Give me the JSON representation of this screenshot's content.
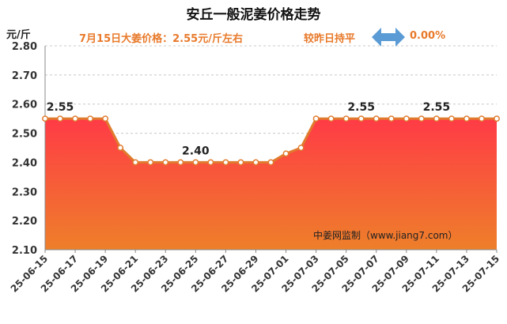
{
  "chart_data": {
    "type": "area",
    "title": "安丘一般泥姜价格走势",
    "ylabel": "元/斤",
    "subtitle_price": "7月15日大姜价格：2.55元/斤左右",
    "subtitle_change": "较昨日持平",
    "change_value": "0.00%",
    "watermark": "中姜网监制（www.jiang7.com）",
    "ylim": [
      2.1,
      2.8
    ],
    "yticks": [
      "2.80",
      "2.70",
      "2.60",
      "2.50",
      "2.40",
      "2.30",
      "2.20",
      "2.10"
    ],
    "x": [
      "25-06-15",
      "25-06-16",
      "25-06-17",
      "25-06-18",
      "25-06-19",
      "25-06-20",
      "25-06-21",
      "25-06-22",
      "25-06-23",
      "25-06-24",
      "25-06-25",
      "25-06-26",
      "25-06-27",
      "25-06-28",
      "25-06-29",
      "25-06-30",
      "25-07-01",
      "25-07-02",
      "25-07-03",
      "25-07-04",
      "25-07-05",
      "25-07-06",
      "25-07-07",
      "25-07-08",
      "25-07-09",
      "25-07-10",
      "25-07-11",
      "25-07-12",
      "25-07-13",
      "25-07-14",
      "25-07-15"
    ],
    "xtick_labels": [
      "25-06-15",
      "25-06-17",
      "25-06-19",
      "25-06-21",
      "25-06-23",
      "25-06-25",
      "25-06-27",
      "25-06-29",
      "25-07-01",
      "25-07-03",
      "25-07-05",
      "25-07-07",
      "25-07-09",
      "25-07-11",
      "25-07-13",
      "25-07-15"
    ],
    "values": [
      2.55,
      2.55,
      2.55,
      2.55,
      2.55,
      2.45,
      2.4,
      2.4,
      2.4,
      2.4,
      2.4,
      2.4,
      2.4,
      2.4,
      2.4,
      2.4,
      2.43,
      2.45,
      2.55,
      2.55,
      2.55,
      2.55,
      2.55,
      2.55,
      2.55,
      2.55,
      2.55,
      2.55,
      2.55,
      2.55,
      2.55
    ],
    "data_labels": [
      {
        "index": 1,
        "text": "2.55"
      },
      {
        "index": 10,
        "text": "2.40"
      },
      {
        "index": 21,
        "text": "2.55"
      },
      {
        "index": 26,
        "text": "2.55"
      }
    ],
    "colors": {
      "line": "#e07b2e",
      "marker_fill": "#ffffff",
      "area_top": "#ff3b46",
      "area_bottom": "#ee7f2a",
      "grid": "#c8c8c8",
      "accent": "#e8792a",
      "arrow": "#5b9bd5"
    }
  }
}
